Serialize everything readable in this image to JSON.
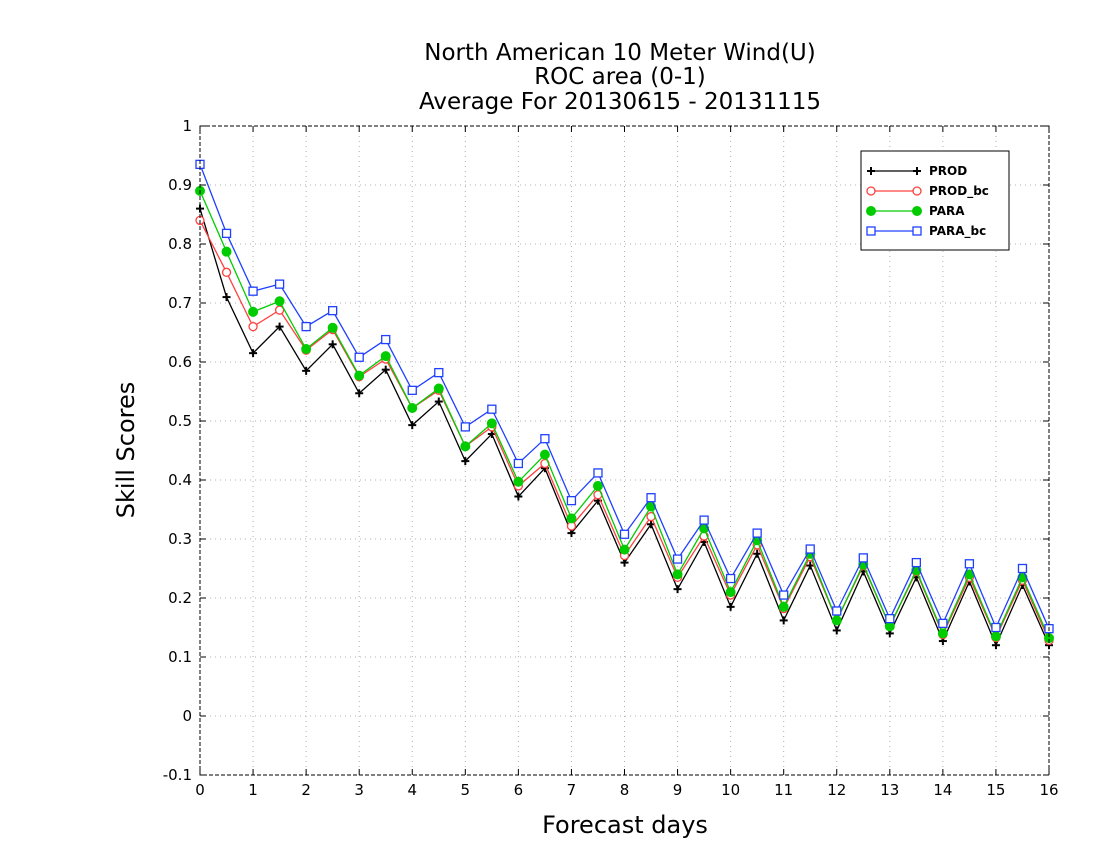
{
  "chart_data": {
    "type": "line",
    "title": [
      "North American 10 Meter Wind(U)",
      "ROC area (0-1)",
      "Average For 20130615 - 20131115"
    ],
    "xlabel": "Forecast days",
    "ylabel": "Skill Scores",
    "xlim": [
      0,
      16
    ],
    "ylim": [
      -0.1,
      1
    ],
    "xticks": [
      0,
      1,
      2,
      3,
      4,
      5,
      6,
      7,
      8,
      9,
      10,
      11,
      12,
      13,
      14,
      15,
      16
    ],
    "yticks": [
      -0.1,
      0,
      0.1,
      0.2,
      0.3,
      0.4,
      0.5,
      0.6,
      0.7,
      0.8,
      0.9,
      1
    ],
    "grid": true,
    "legend_position": "top-right",
    "x": [
      0,
      0.5,
      1,
      1.5,
      2,
      2.5,
      3,
      3.5,
      4,
      4.5,
      5,
      5.5,
      6,
      6.5,
      7,
      7.5,
      8,
      8.5,
      9,
      9.5,
      10,
      10.5,
      11,
      11.5,
      12,
      12.5,
      13,
      13.5,
      14,
      14.5,
      15,
      15.5,
      16
    ],
    "series": [
      {
        "name": "PROD",
        "color": "#000000",
        "marker": "plus",
        "values": [
          0.86,
          0.71,
          0.615,
          0.66,
          0.585,
          0.63,
          0.547,
          0.587,
          0.493,
          0.533,
          0.432,
          0.478,
          0.372,
          0.42,
          0.31,
          0.365,
          0.26,
          0.325,
          0.215,
          0.295,
          0.185,
          0.275,
          0.162,
          0.255,
          0.145,
          0.245,
          0.14,
          0.235,
          0.127,
          0.228,
          0.12,
          0.222,
          0.12
        ]
      },
      {
        "name": "PROD_bc",
        "color": "#ff4040",
        "marker": "open-circle",
        "values": [
          0.84,
          0.752,
          0.66,
          0.688,
          0.62,
          0.655,
          0.575,
          0.605,
          0.522,
          0.552,
          0.457,
          0.49,
          0.39,
          0.428,
          0.322,
          0.375,
          0.272,
          0.338,
          0.235,
          0.305,
          0.205,
          0.29,
          0.182,
          0.27,
          0.162,
          0.255,
          0.152,
          0.245,
          0.138,
          0.235,
          0.133,
          0.23,
          0.128
        ]
      },
      {
        "name": "PARA",
        "color": "#00cc00",
        "marker": "filled-circle",
        "values": [
          0.89,
          0.787,
          0.685,
          0.703,
          0.622,
          0.658,
          0.577,
          0.61,
          0.522,
          0.555,
          0.457,
          0.496,
          0.397,
          0.443,
          0.335,
          0.39,
          0.282,
          0.355,
          0.24,
          0.318,
          0.21,
          0.298,
          0.185,
          0.275,
          0.162,
          0.257,
          0.152,
          0.247,
          0.14,
          0.24,
          0.135,
          0.235,
          0.132
        ]
      },
      {
        "name": "PARA_bc",
        "color": "#2040ff",
        "marker": "open-square",
        "values": [
          0.935,
          0.818,
          0.72,
          0.732,
          0.66,
          0.687,
          0.608,
          0.638,
          0.552,
          0.582,
          0.49,
          0.52,
          0.428,
          0.47,
          0.365,
          0.412,
          0.308,
          0.37,
          0.266,
          0.332,
          0.233,
          0.31,
          0.205,
          0.283,
          0.178,
          0.268,
          0.165,
          0.26,
          0.157,
          0.258,
          0.15,
          0.25,
          0.148
        ]
      }
    ]
  }
}
